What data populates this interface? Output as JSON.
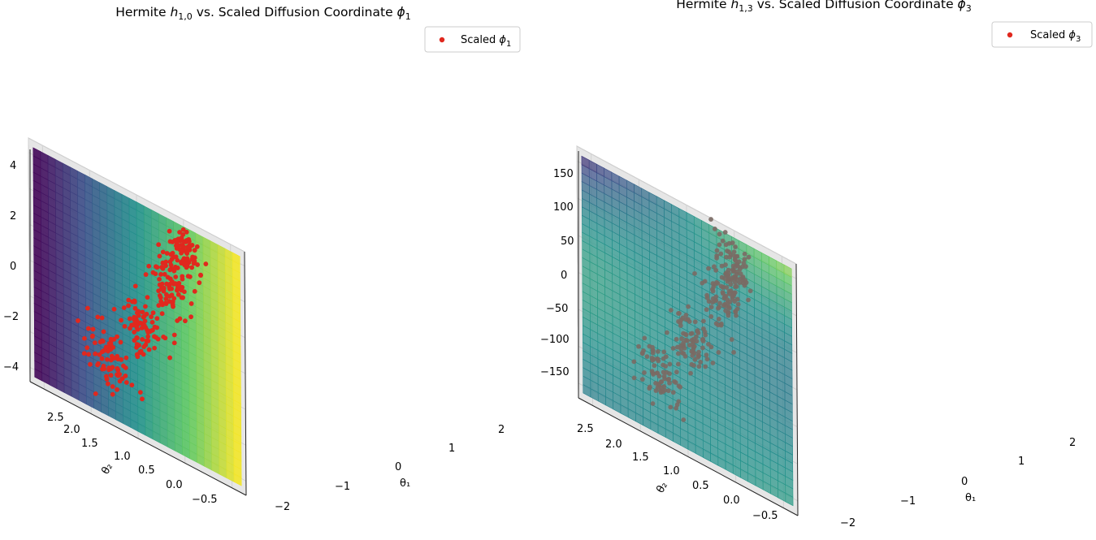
{
  "chart_data": [
    {
      "type": "surface3d",
      "title_prefix": "Hermite ",
      "title_math": "h",
      "title_sub": "1,0",
      "title_rest": " vs. Scaled Diffusion Coordinate ",
      "title_sym": "ϕ",
      "title_sym_sub": "1",
      "legend": {
        "label": "Scaled ",
        "sym": "ϕ",
        "sub": "1",
        "placement": "top-right"
      },
      "xlabel": "θ₁",
      "ylabel": "θ₂",
      "x_ticks": [
        "−2",
        "−1",
        "0",
        "1",
        "2"
      ],
      "y_ticks": [
        "−0.5",
        "0.0",
        "0.5",
        "1.0",
        "1.5",
        "2.0",
        "2.5"
      ],
      "z_ticks": [
        "−4",
        "−2",
        "0",
        "2",
        "4"
      ],
      "xlim": [
        -2.3,
        2.3
      ],
      "ylim": [
        -0.7,
        2.7
      ],
      "zlim": [
        -5,
        4.5
      ],
      "surface": "z = 2*theta1",
      "marker_color": "#e0281e",
      "stem_color": "#1f3fbf",
      "colormap": "viridis"
    },
    {
      "type": "surface3d",
      "title_prefix": "Hermite ",
      "title_math": "h",
      "title_sub": "1,3",
      "title_rest": " vs. Scaled Diffusion Coordinate ",
      "title_sym": "ϕ",
      "title_sym_sub": "3",
      "legend": {
        "label": "Scaled ",
        "sym": "ϕ",
        "sub": "3",
        "placement": "top-right"
      },
      "xlabel": "θ₁",
      "ylabel": "θ₂",
      "x_ticks": [
        "−2",
        "−1",
        "0",
        "1",
        "2"
      ],
      "y_ticks": [
        "−0.5",
        "0.0",
        "0.5",
        "1.0",
        "1.5",
        "2.0",
        "2.5"
      ],
      "z_ticks": [
        "−150",
        "−100",
        "−50",
        "0",
        "50",
        "100",
        "150"
      ],
      "xlim": [
        -2.3,
        2.3
      ],
      "ylim": [
        -0.7,
        2.7
      ],
      "zlim": [
        -170,
        180
      ],
      "surface": "z = theta1 * (theta2^3 - 3*theta2) * 6",
      "marker_color": "#e0281e",
      "marker_color_hidden": "#7a6a64",
      "stem_color": "#1f3fbf",
      "colormap": "viridis"
    }
  ]
}
